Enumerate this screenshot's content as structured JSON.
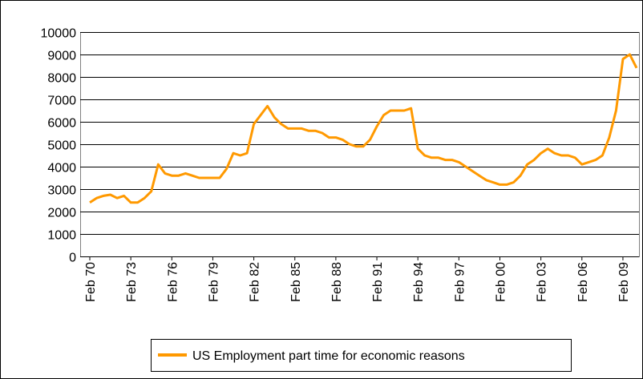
{
  "chart_data": {
    "type": "line",
    "categories": [
      "Feb 70",
      null,
      null,
      null,
      null,
      null,
      "Feb 73",
      null,
      null,
      null,
      null,
      null,
      "Feb 76",
      null,
      null,
      null,
      null,
      null,
      "Feb 79",
      null,
      null,
      null,
      null,
      null,
      "Feb 82",
      null,
      null,
      null,
      null,
      null,
      "Feb 85",
      null,
      null,
      null,
      null,
      null,
      "Feb 88",
      null,
      null,
      null,
      null,
      null,
      "Feb 91",
      null,
      null,
      null,
      null,
      null,
      "Feb 94",
      null,
      null,
      null,
      null,
      null,
      "Feb 97",
      null,
      null,
      null,
      null,
      null,
      "Feb 00",
      null,
      null,
      null,
      null,
      null,
      "Feb 03",
      null,
      null,
      null,
      null,
      null,
      "Feb 06",
      null,
      null,
      null,
      null,
      null,
      "Feb 09",
      null,
      null
    ],
    "series": [
      {
        "name": "US Employment part time for economic reasons",
        "color": "#ff9900",
        "values": [
          2400,
          2600,
          2700,
          2750,
          2600,
          2700,
          2400,
          2400,
          2600,
          2900,
          4100,
          3700,
          3600,
          3600,
          3700,
          3600,
          3500,
          3500,
          3500,
          3500,
          3900,
          4600,
          4500,
          4600,
          5900,
          6300,
          6700,
          6200,
          5900,
          5700,
          5700,
          5700,
          5600,
          5600,
          5500,
          5300,
          5300,
          5200,
          5000,
          4900,
          4900,
          5200,
          5800,
          6300,
          6500,
          6500,
          6500,
          6600,
          4800,
          4500,
          4400,
          4400,
          4300,
          4300,
          4200,
          4000,
          3800,
          3600,
          3400,
          3300,
          3200,
          3200,
          3300,
          3600,
          4100,
          4300,
          4600,
          4800,
          4600,
          4500,
          4500,
          4400,
          4100,
          4200,
          4300,
          4500,
          5300,
          6500,
          8800,
          9000,
          8400
        ]
      }
    ],
    "ylim": [
      0,
      10000
    ],
    "yticks": [
      0,
      1000,
      2000,
      3000,
      4000,
      5000,
      6000,
      7000,
      8000,
      9000,
      10000
    ],
    "grid": true,
    "legend": "bottom"
  }
}
